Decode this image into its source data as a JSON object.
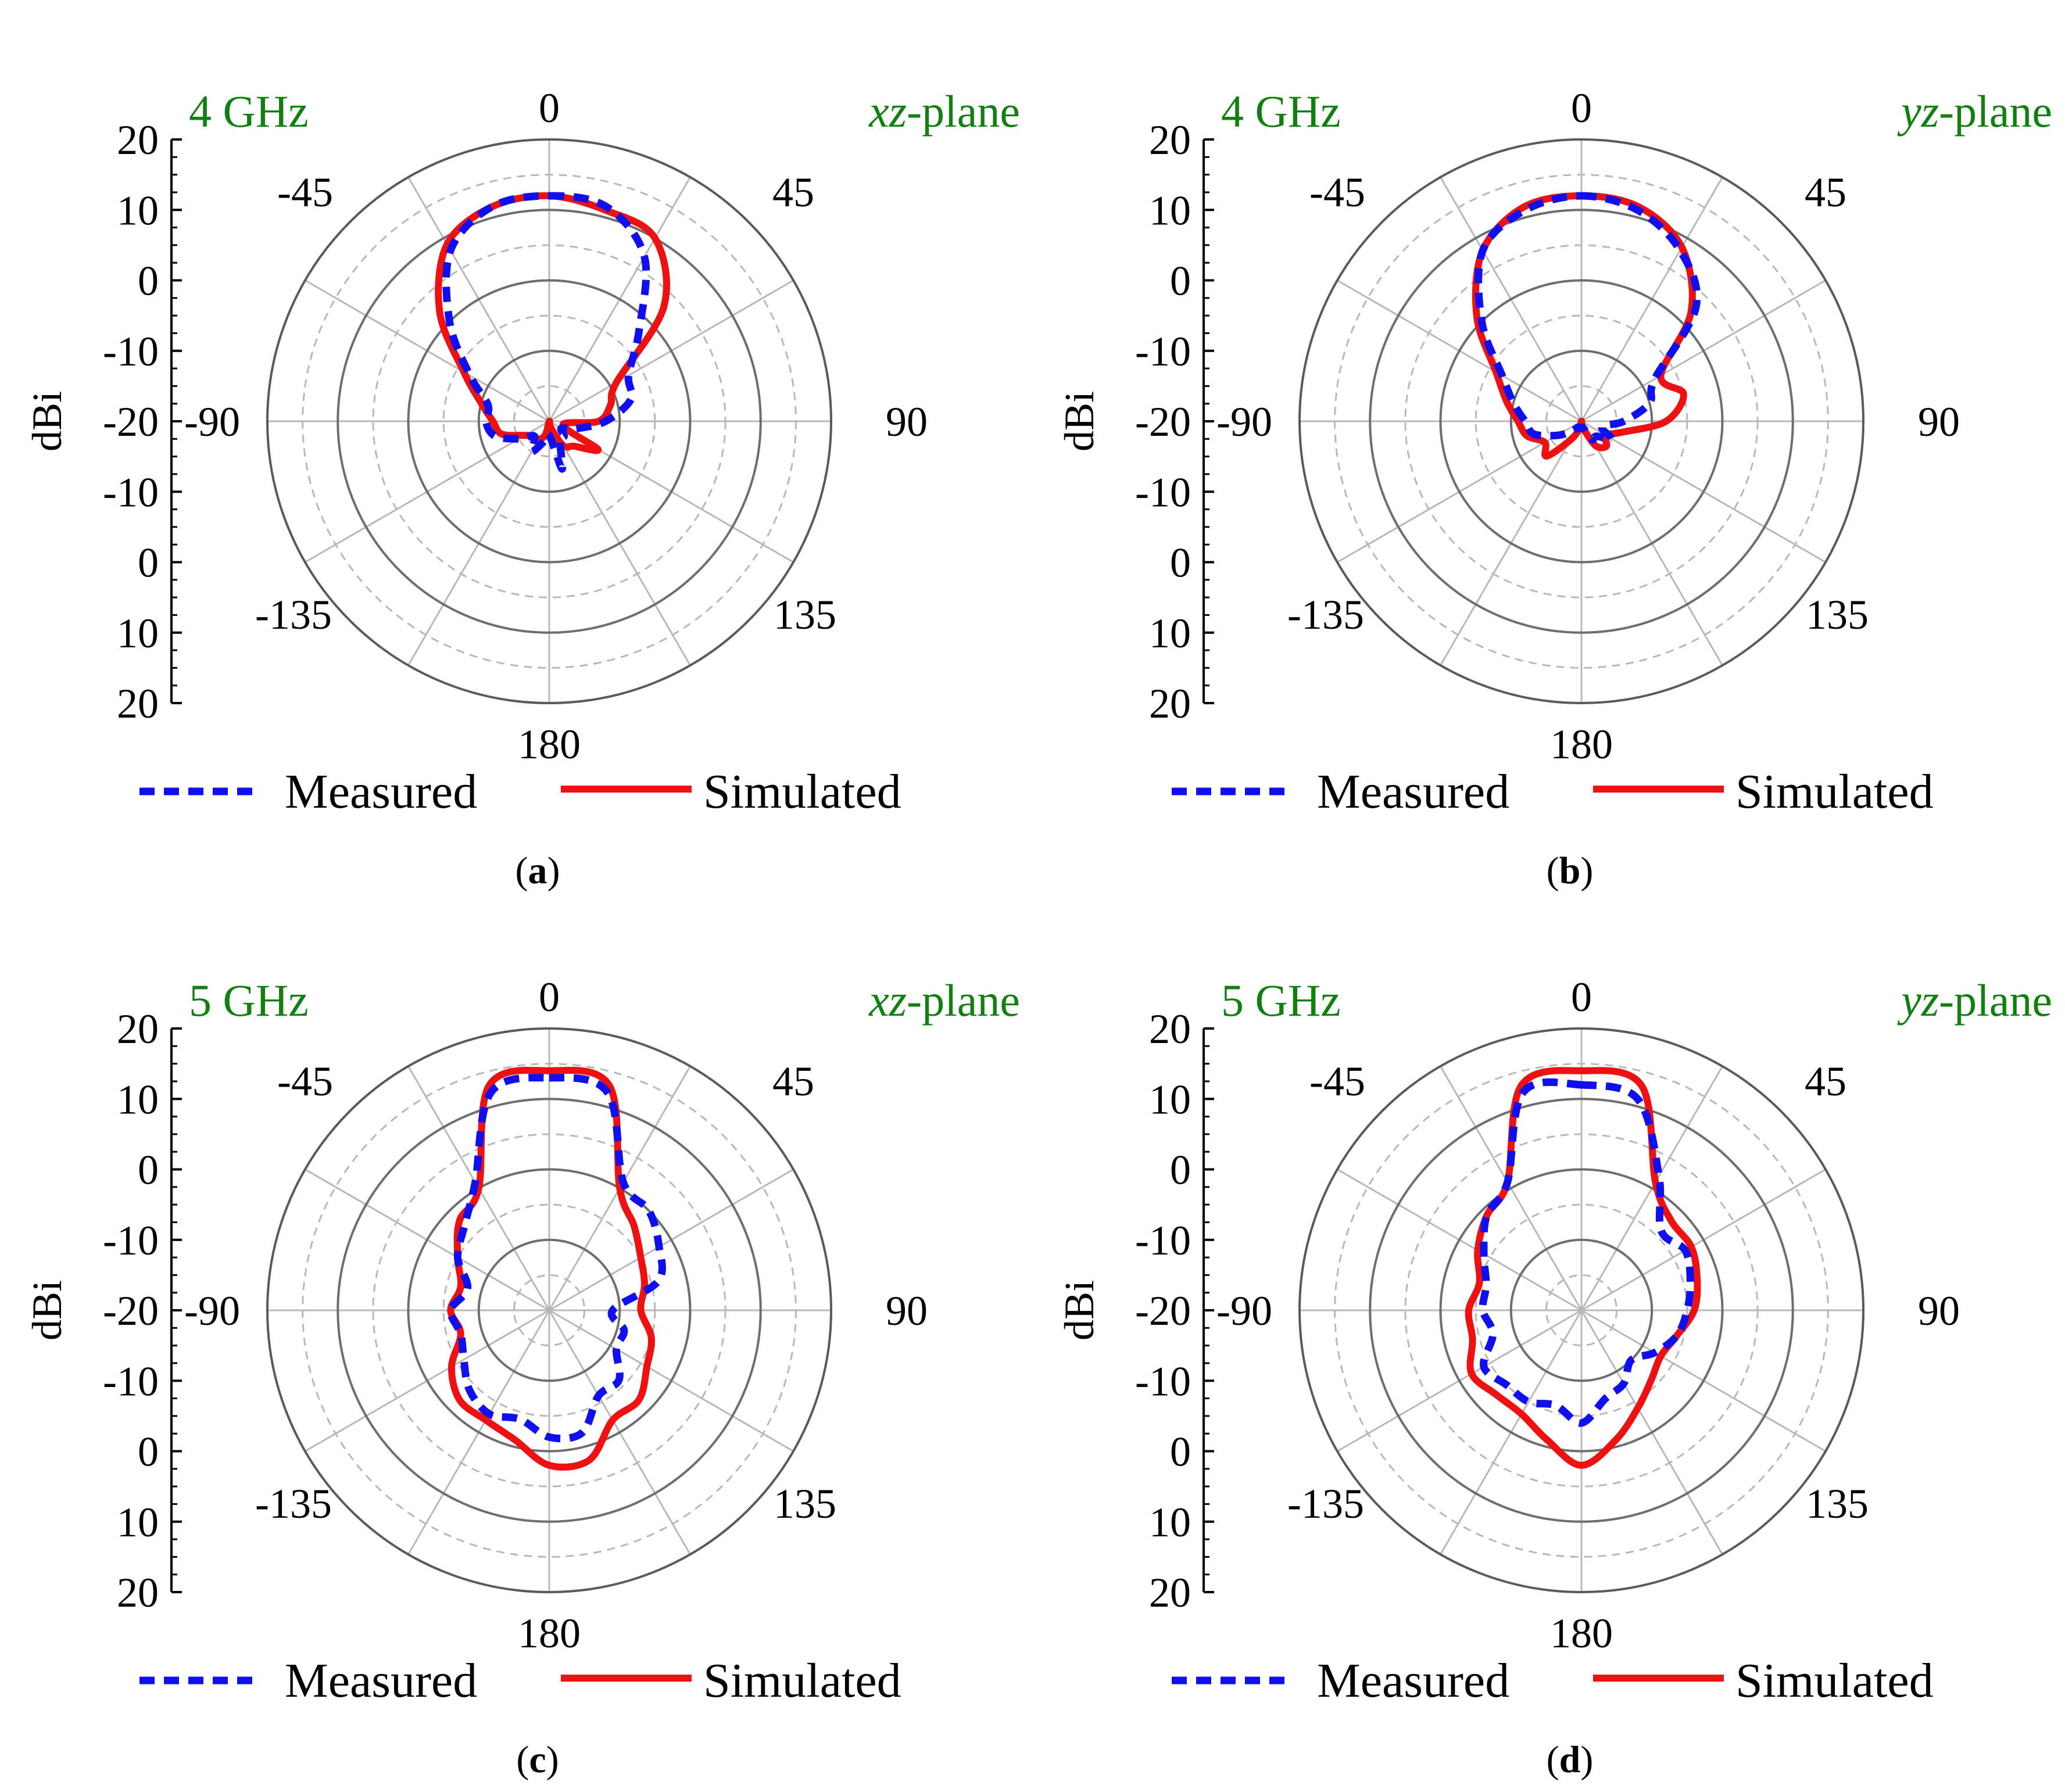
{
  "figure": {
    "legend": {
      "measured_label": "Measured",
      "simulated_label": "Simulated"
    },
    "y_axis_label": "dBi",
    "radial_tick_labels": [
      "20",
      "10",
      "0",
      "-10",
      "-20",
      "-10",
      "0",
      "10",
      "20"
    ],
    "angle_labels": {
      "top": "0",
      "top_right": "45",
      "right": "90",
      "bottom_right": "135",
      "bottom": "180",
      "bottom_left": "-135",
      "left": "-90",
      "top_left": "-45"
    },
    "colors": {
      "measured": "#1010ee",
      "simulated": "#ee1111",
      "annotation": "#118011",
      "grid_solid": "#6e6e6e",
      "grid_dashed": "#b8b8b8"
    }
  },
  "chart_data": [
    {
      "type": "polar-line",
      "panel": "a",
      "caption_letter": "a",
      "frequency_label": "4 GHz",
      "plane_label": {
        "italic": "xz",
        "rest": "-plane"
      },
      "r_range_dBi": [
        -20,
        20
      ],
      "theta_deg": [
        0,
        15,
        30,
        45,
        60,
        75,
        90,
        105,
        120,
        135,
        150,
        165,
        180,
        195,
        210,
        225,
        240,
        255,
        270,
        285,
        300,
        315,
        330,
        345
      ],
      "series": [
        {
          "name": "Measured",
          "values_dBi": [
            12,
            11.5,
            7,
            -2,
            -7,
            -8,
            -12,
            -16,
            -18,
            -17,
            -17,
            -13,
            -18,
            -17,
            -15,
            -17,
            -15,
            -12,
            -11,
            -11,
            -7,
            0,
            8,
            11.5
          ]
        },
        {
          "name": "Simulated",
          "values_dBi": [
            12,
            11,
            10,
            3,
            -9,
            -11,
            -13,
            -18,
            -12,
            -15,
            -16,
            -19,
            -20,
            -18,
            -17,
            -17,
            -16,
            -13,
            -12,
            -10,
            -6,
            2,
            9,
            11.5
          ]
        }
      ]
    },
    {
      "type": "polar-line",
      "panel": "b",
      "caption_letter": "b",
      "frequency_label": "4 GHz",
      "plane_label": {
        "italic": "yz",
        "rest": "-plane"
      },
      "r_range_dBi": [
        -20,
        20
      ],
      "theta_deg": [
        0,
        15,
        30,
        45,
        60,
        75,
        90,
        105,
        120,
        135,
        150,
        165,
        180,
        195,
        210,
        225,
        240,
        255,
        270,
        285,
        300,
        315,
        330,
        345
      ],
      "series": [
        {
          "name": "Measured",
          "values_dBi": [
            12,
            11,
            8,
            3,
            -8,
            -10,
            -14,
            -17,
            -15,
            -17,
            -17,
            -19,
            -19,
            -19,
            -19,
            -18,
            -16,
            -13,
            -12,
            -10,
            -7,
            0,
            8,
            11
          ]
        },
        {
          "name": "Simulated",
          "values_dBi": [
            12,
            11.5,
            8.5,
            2,
            -7,
            -5,
            -8,
            -14,
            -16,
            -15,
            -16,
            -19,
            -20,
            -19,
            -17,
            -13,
            -14,
            -12,
            -11,
            -9,
            -6,
            1,
            8,
            11.5
          ]
        }
      ]
    },
    {
      "type": "polar-line",
      "panel": "c",
      "caption_letter": "c",
      "frequency_label": "5 GHz",
      "plane_label": {
        "italic": "xz",
        "rest": "-plane"
      },
      "r_range_dBi": [
        -20,
        20
      ],
      "theta_deg": [
        0,
        15,
        30,
        45,
        60,
        75,
        90,
        105,
        120,
        135,
        150,
        165,
        180,
        195,
        210,
        225,
        240,
        255,
        270,
        285,
        300,
        315,
        330,
        345
      ],
      "series": [
        {
          "name": "Measured",
          "values_dBi": [
            13,
            12,
            1,
            0,
            -2,
            -4,
            -11,
            -9,
            -9,
            -6,
            -6,
            -2,
            -2,
            -4,
            -3,
            -4,
            -6,
            -7,
            -6,
            -8,
            -5,
            -3,
            1,
            12
          ]
        },
        {
          "name": "Simulated",
          "values_dBi": [
            14,
            13,
            0,
            -3,
            -5,
            -6,
            -7,
            -5,
            -4,
            -2,
            -2,
            2,
            2,
            -1,
            -2,
            -2,
            -4,
            -7,
            -6,
            -7,
            -5,
            -2,
            0,
            13
          ]
        }
      ]
    },
    {
      "type": "polar-line",
      "panel": "d",
      "caption_letter": "d",
      "frequency_label": "5 GHz",
      "plane_label": {
        "italic": "yz",
        "rest": "-plane"
      },
      "r_range_dBi": [
        -20,
        20
      ],
      "theta_deg": [
        0,
        15,
        30,
        45,
        60,
        75,
        90,
        105,
        120,
        135,
        150,
        165,
        180,
        195,
        210,
        225,
        240,
        255,
        270,
        285,
        300,
        315,
        330,
        345
      ],
      "series": [
        {
          "name": "Measured",
          "values_dBi": [
            12,
            11,
            2,
            -4,
            -3,
            -4,
            -5,
            -6,
            -8,
            -10,
            -8,
            -7,
            -4,
            -6,
            -5,
            -5,
            -4,
            -7,
            -6,
            -6,
            -4,
            -1,
            1,
            12
          ]
        },
        {
          "name": "Simulated",
          "values_dBi": [
            14,
            13,
            1,
            -2,
            -2,
            -3,
            -4,
            -6,
            -7,
            -6,
            -4,
            -1,
            2,
            -1,
            -3,
            -3,
            -2,
            -4,
            -4,
            -5,
            -3,
            -1,
            1,
            13
          ]
        }
      ]
    }
  ]
}
